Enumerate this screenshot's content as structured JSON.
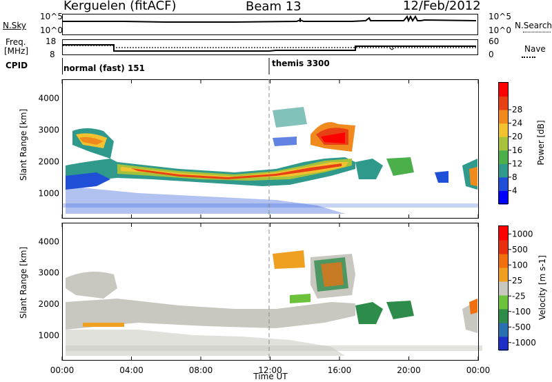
{
  "header": {
    "station": "Kerguelen (fitACF)",
    "beam": "Beam 13",
    "date": "12/Feb/2012"
  },
  "noise_panel": {
    "left_label": "N.Sky",
    "left_ticks": [
      "10^5",
      "10^0"
    ],
    "right_label": "N.Search",
    "right_ticks": [
      "10^5",
      "10^0"
    ]
  },
  "freq_panel": {
    "left_label_1": "Freq.",
    "left_label_2": "[MHz]",
    "left_ticks": [
      "18",
      "8"
    ],
    "right_label": "Nave",
    "right_ticks": [
      "60",
      "0"
    ]
  },
  "cpid": {
    "label": "CPID",
    "programs": [
      "normal (fast) 151",
      "themis 3300"
    ]
  },
  "chart_data": [
    {
      "type": "heatmap",
      "title": "",
      "xlabel": "",
      "ylabel": "Slant Range [km]",
      "x_ticks": [
        "00:00",
        "04:00",
        "08:00",
        "12:00",
        "16:00",
        "20:00",
        "00:00"
      ],
      "y_ticks": [
        1000,
        2000,
        3000,
        4000
      ],
      "ylim": [
        200,
        4600
      ],
      "colorbar": {
        "label": "Power [dB]",
        "ticks": [
          4,
          8,
          12,
          16,
          20,
          24,
          28
        ],
        "colors": [
          "#0000ff",
          "#1f4fd6",
          "#2f9a8c",
          "#4cb04a",
          "#a6c23a",
          "#f2c230",
          "#f08a1e",
          "#e84015",
          "#ff0000"
        ]
      }
    },
    {
      "type": "heatmap",
      "title": "",
      "xlabel": "Time UT",
      "ylabel": "Slant Range [km]",
      "x_ticks": [
        "00:00",
        "04:00",
        "08:00",
        "12:00",
        "16:00",
        "20:00",
        "00:00"
      ],
      "y_ticks": [
        1000,
        2000,
        3000,
        4000
      ],
      "ylim": [
        200,
        4600
      ],
      "colorbar": {
        "label": "Velocity [m s-1]",
        "ticks": [
          "1000",
          "500",
          "100",
          "25",
          "-25",
          "-100",
          "-500",
          "-1000"
        ],
        "colors": [
          "#1e2fc8",
          "#2a6fb0",
          "#2e8c4a",
          "#6cc23a",
          "#c8c8c0",
          "#f0a020",
          "#f07010",
          "#e83010",
          "#ff0000"
        ]
      }
    }
  ]
}
